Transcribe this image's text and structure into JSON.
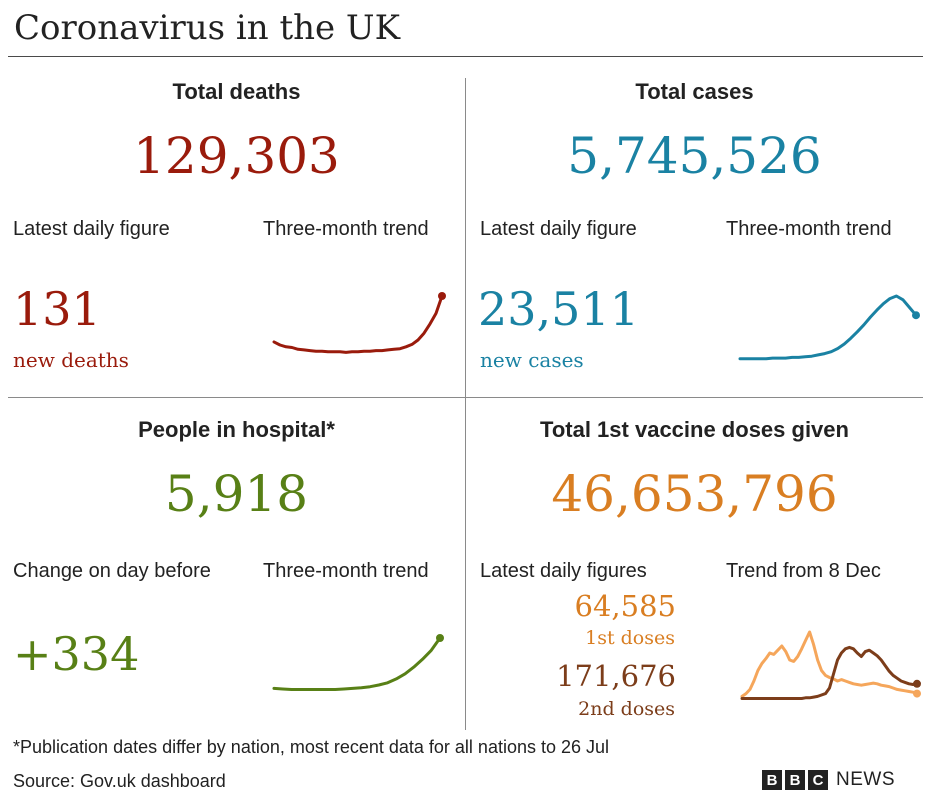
{
  "title": "Coronavirus in the UK",
  "colors": {
    "deaths": "#9a1b0c",
    "cases": "#1a82a3",
    "hospital": "#588016",
    "vaccine_total": "#d97e22",
    "first_doses": "#f5a65b",
    "second_doses": "#7c3d1a"
  },
  "panels": {
    "deaths": {
      "heading": "Total deaths",
      "total": "129,303",
      "left_label": "Latest daily figure",
      "right_label": "Three-month trend",
      "daily_value": "131",
      "daily_caption": "new deaths"
    },
    "cases": {
      "heading": "Total cases",
      "total": "5,745,526",
      "left_label": "Latest daily figure",
      "right_label": "Three-month trend",
      "daily_value": "23,511",
      "daily_caption": "new cases"
    },
    "hospital": {
      "heading": "People in hospital*",
      "total": "5,918",
      "left_label": "Change on day before",
      "right_label": "Three-month trend",
      "daily_value": "+334"
    },
    "vaccine": {
      "heading": "Total 1st vaccine doses given",
      "total": "46,653,796",
      "left_label": "Latest daily figures",
      "right_label": "Trend from 8 Dec",
      "first_value": "64,585",
      "first_caption": "1st doses",
      "second_value": "171,676",
      "second_caption": "2nd doses"
    }
  },
  "chart_data": [
    {
      "type": "line",
      "name": "deaths-three-month-trend",
      "series": [
        {
          "values": [
            26,
            21,
            18,
            17,
            14,
            13,
            12,
            11,
            11,
            10,
            10,
            10,
            9,
            10,
            10,
            11,
            11,
            12,
            12,
            13,
            14,
            15,
            18,
            22,
            29,
            40,
            55,
            72,
            100
          ]
        }
      ]
    },
    {
      "type": "line",
      "name": "cases-three-month-trend",
      "series": [
        {
          "values": [
            2,
            2,
            2,
            2,
            2,
            3,
            3,
            3,
            4,
            4,
            5,
            6,
            8,
            10,
            13,
            18,
            25,
            34,
            44,
            55,
            67,
            78,
            88,
            96,
            100,
            94,
            82,
            70
          ]
        }
      ]
    },
    {
      "type": "line",
      "name": "hospital-three-month-trend",
      "series": [
        {
          "values": [
            10,
            9,
            8,
            8,
            8,
            8,
            8,
            8,
            9,
            10,
            11,
            13,
            16,
            20,
            27,
            36,
            48,
            62,
            78,
            100
          ]
        }
      ]
    },
    {
      "type": "line",
      "name": "vaccine-trend-from-8-dec",
      "series": [
        {
          "values": [
            8,
            12,
            18,
            30,
            45,
            55,
            62,
            70,
            68,
            74,
            80,
            72,
            60,
            58,
            65,
            76,
            88,
            100,
            82,
            60,
            45,
            38,
            35,
            33,
            30,
            32,
            30,
            28,
            26,
            25,
            24,
            25,
            26,
            27,
            26,
            24,
            23,
            22,
            20,
            18,
            17,
            16,
            15,
            14,
            12
          ]
        },
        {
          "values": [
            5,
            5,
            5,
            5,
            5,
            5,
            5,
            5,
            5,
            5,
            5,
            5,
            5,
            5,
            5,
            5,
            6,
            6,
            7,
            8,
            10,
            12,
            20,
            40,
            60,
            70,
            76,
            78,
            76,
            70,
            65,
            72,
            74,
            70,
            66,
            60,
            52,
            44,
            38,
            34,
            30,
            28,
            26,
            25,
            26
          ]
        }
      ]
    }
  ],
  "footnote": "*Publication dates differ by nation, most recent data for all nations to 26 Jul",
  "source": "Source: Gov.uk dashboard",
  "brand": {
    "letters": [
      "B",
      "B",
      "C"
    ],
    "news": "NEWS"
  }
}
